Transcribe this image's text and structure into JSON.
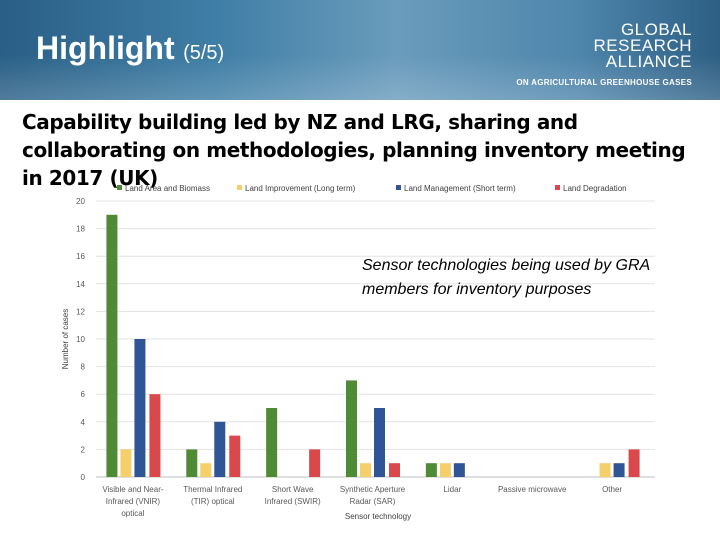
{
  "header": {
    "title": "Highlight",
    "title_suffix": "(5/5)"
  },
  "logo": {
    "line1": "GLOBAL",
    "line2": "RESEARCH",
    "line3": "ALLIANCE",
    "tagline": "ON AGRICULTURAL GREENHOUSE GASES"
  },
  "heading": "Capability building led by NZ and LRG, sharing and collaborating on methodologies, planning inventory meeting in 2017 (UK)",
  "annotation": "Sensor technologies being used by GRA members for inventory purposes",
  "chart_data": {
    "type": "bar",
    "xlabel": "Sensor technology",
    "ylabel": "Number of cases",
    "ylim": [
      0,
      20
    ],
    "yticks": [
      0,
      2,
      4,
      6,
      8,
      10,
      12,
      14,
      16,
      18,
      20
    ],
    "grid": true,
    "legend_position": "top",
    "categories": [
      [
        "Visible and Near-",
        "Infrared (VNIR)",
        "optical"
      ],
      [
        "Thermal Infrared",
        "(TIR) optical"
      ],
      [
        "Short Wave",
        "Infrared (SWIR)"
      ],
      [
        "Synthetic Aperture",
        "Radar (SAR)"
      ],
      [
        "Lidar"
      ],
      [
        "Passive microwave"
      ],
      [
        "Other"
      ]
    ],
    "series": [
      {
        "name": "Land Area and Biomass",
        "color": "#4f8a34",
        "values": [
          19,
          2,
          5,
          7,
          1,
          0,
          0
        ]
      },
      {
        "name": "Land Improvement (Long term)",
        "color": "#f5cf6a",
        "values": [
          2,
          1,
          0,
          1,
          1,
          0,
          1
        ]
      },
      {
        "name": "Land Management (Short term)",
        "color": "#2f5597",
        "values": [
          10,
          4,
          0,
          5,
          1,
          0,
          1
        ]
      },
      {
        "name": "Land Degradation",
        "color": "#d9484b",
        "values": [
          6,
          3,
          2,
          1,
          0,
          0,
          2
        ]
      }
    ]
  }
}
